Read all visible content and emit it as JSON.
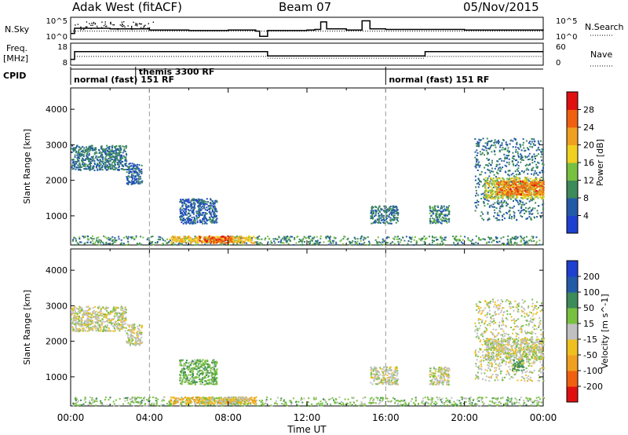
{
  "header": {
    "radar": "Adak West (fitACF)",
    "beam": "Beam 07",
    "date": "05/Nov/2015"
  },
  "side_labels": {
    "nsky": "N.Sky",
    "freq_line1": "Freq.",
    "freq_line2": "[MHz]",
    "cpid": "CPID",
    "nsearch": "N.Search",
    "nave": "Nave"
  },
  "chart_data": [
    {
      "type": "line",
      "panel": "noise",
      "series": [
        {
          "name": "N.Sky",
          "style": "solid"
        },
        {
          "name": "N.Search",
          "style": "dotted"
        }
      ],
      "left_ticks": [
        "10^5",
        "10^0"
      ],
      "right_ticks": [
        "10^5",
        "10^0"
      ],
      "x_hours": [
        0,
        0.2,
        2,
        4,
        6,
        8,
        9.4,
        9.6,
        10,
        12,
        12.4,
        12.7,
        13,
        14,
        14.8,
        15.2,
        16,
        20,
        24
      ],
      "nsky_log": [
        0.6,
        1.5,
        1.4,
        1.2,
        1.1,
        1.2,
        1.0,
        0.1,
        1.1,
        1.2,
        1.3,
        2.6,
        1.4,
        1.2,
        2.8,
        1.4,
        1.3,
        1.2,
        1.3
      ]
    },
    {
      "type": "line",
      "panel": "frequency",
      "left_ticks": [
        "18",
        "8"
      ],
      "right_ticks": [
        "60",
        "0"
      ],
      "freq_steps": [
        {
          "from_hour": 0,
          "to_hour": 0.2,
          "mhz": 10.0
        },
        {
          "from_hour": 0.2,
          "to_hour": 10,
          "mhz": 14.5
        },
        {
          "from_hour": 10,
          "to_hour": 18,
          "mhz": 12.0
        },
        {
          "from_hour": 18,
          "to_hour": 24,
          "mhz": 14.5
        }
      ],
      "nave_steps": [
        {
          "from_hour": 0.2,
          "to_hour": 10,
          "value": 22
        },
        {
          "from_hour": 10,
          "to_hour": 18,
          "value": 16
        },
        {
          "from_hour": 18,
          "to_hour": 24,
          "value": 22
        }
      ]
    },
    {
      "type": "table",
      "panel": "cpid",
      "entries": [
        {
          "start_hour": 0,
          "label": "normal (fast) 151 RF"
        },
        {
          "start_hour": 3.3,
          "label": "themis 3300 RF"
        },
        {
          "start_hour": 16,
          "label": "normal (fast) 151 RF"
        }
      ]
    },
    {
      "type": "heatmap",
      "panel": "power",
      "ylabel": "Slant Range [km]",
      "colorbar_label": "Power [dB]",
      "x_range_hours": [
        0,
        24
      ],
      "ylim_km": [
        180,
        4600
      ],
      "yticks": [
        1000,
        2000,
        3000,
        4000
      ],
      "colorbar_ticks": [
        4,
        8,
        12,
        16,
        20,
        24,
        28
      ],
      "colorbar_range": [
        0,
        32
      ],
      "colors": [
        "#1f3fd0",
        "#235aa8",
        "#3d8a5a",
        "#78c040",
        "#f0d020",
        "#f0a020",
        "#f06010",
        "#e01010"
      ],
      "regions": [
        {
          "t": [
            0.0,
            2.8
          ],
          "r": [
            2300,
            3000
          ],
          "level": 8
        },
        {
          "t": [
            2.8,
            3.6
          ],
          "r": [
            1900,
            2500
          ],
          "level": 6
        },
        {
          "t": [
            5.5,
            7.4
          ],
          "r": [
            800,
            1500
          ],
          "level": 6
        },
        {
          "t": [
            0.0,
            24.0
          ],
          "r": [
            200,
            450
          ],
          "level": 10
        },
        {
          "t": [
            5.0,
            9.4
          ],
          "r": [
            250,
            450
          ],
          "level": 20
        },
        {
          "t": [
            6.5,
            8.2
          ],
          "r": [
            250,
            450
          ],
          "level": 27
        },
        {
          "t": [
            15.2,
            16.6
          ],
          "r": [
            800,
            1300
          ],
          "level": 8
        },
        {
          "t": [
            18.2,
            19.2
          ],
          "r": [
            800,
            1300
          ],
          "level": 9
        },
        {
          "t": [
            20.5,
            24.0
          ],
          "r": [
            900,
            3200
          ],
          "level": 8
        },
        {
          "t": [
            21.0,
            24.0
          ],
          "r": [
            1500,
            2100
          ],
          "level": 17
        },
        {
          "t": [
            21.6,
            24.0
          ],
          "r": [
            1600,
            2000
          ],
          "level": 25
        }
      ]
    },
    {
      "type": "heatmap",
      "panel": "velocity",
      "xlabel": "Time UT",
      "ylabel": "Slant Range [km]",
      "colorbar_label": "Velocity [m s^-1]",
      "x_range_hours": [
        0,
        24
      ],
      "xtick_labels": [
        "00:00",
        "04:00",
        "08:00",
        "12:00",
        "16:00",
        "20:00",
        "00:00"
      ],
      "ylim_km": [
        180,
        4600
      ],
      "yticks": [
        1000,
        2000,
        3000,
        4000
      ],
      "colorbar_ticks": [
        "200",
        "100",
        "50",
        "15",
        "-15",
        "-50",
        "-100",
        "-200"
      ],
      "colorbar_range": [
        -250,
        250
      ],
      "colors": [
        "#e01010",
        "#f06010",
        "#f0a020",
        "#f0c020",
        "#c0c0c0",
        "#78c040",
        "#3d8a5a",
        "#235aa8",
        "#1f3fd0"
      ],
      "regions": [
        {
          "t": [
            0.0,
            2.8
          ],
          "r": [
            2300,
            3000
          ],
          "vel": 0
        },
        {
          "t": [
            2.8,
            3.6
          ],
          "r": [
            1900,
            2500
          ],
          "vel": 0
        },
        {
          "t": [
            5.5,
            7.4
          ],
          "r": [
            800,
            1500
          ],
          "vel": 40
        },
        {
          "t": [
            0.0,
            24.0
          ],
          "r": [
            200,
            450
          ],
          "vel": 30
        },
        {
          "t": [
            5.0,
            9.4
          ],
          "r": [
            250,
            450
          ],
          "vel": -60
        },
        {
          "t": [
            6.5,
            9.0
          ],
          "r": [
            250,
            450
          ],
          "vel": 0
        },
        {
          "t": [
            15.2,
            16.6
          ],
          "r": [
            800,
            1300
          ],
          "vel": 0
        },
        {
          "t": [
            18.2,
            19.2
          ],
          "r": [
            800,
            1300
          ],
          "vel": 0
        },
        {
          "t": [
            20.5,
            24.0
          ],
          "r": [
            900,
            3200
          ],
          "vel": 0
        },
        {
          "t": [
            21.0,
            24.0
          ],
          "r": [
            1500,
            2100
          ],
          "vel": 0
        },
        {
          "t": [
            22.4,
            23.0
          ],
          "r": [
            1200,
            1500
          ],
          "vel": 70
        }
      ]
    }
  ]
}
